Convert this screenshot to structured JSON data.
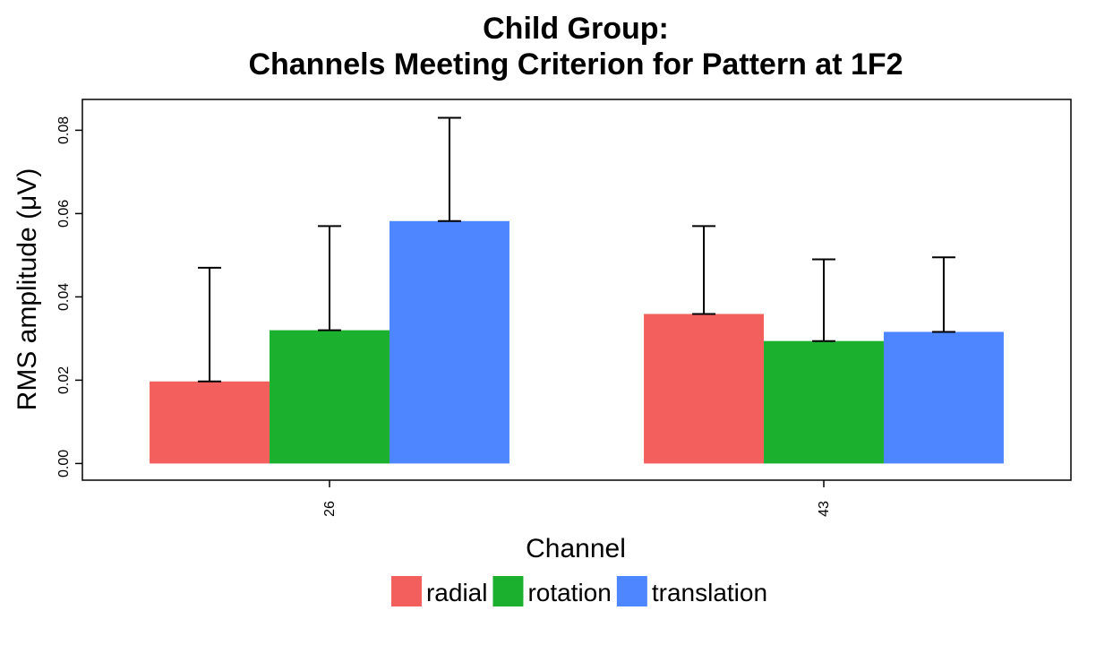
{
  "chart_data": {
    "type": "bar",
    "title": "Child Group:",
    "subtitle": "Channels Meeting Criterion for Pattern at 1F2",
    "xlabel": "Channel",
    "ylabel": "RMS amplitude (μV)",
    "categories": [
      "26",
      "43"
    ],
    "series": [
      {
        "name": "radial",
        "color": "#F25F5C",
        "values": [
          0.0197,
          0.0359
        ],
        "error_upper": [
          0.047,
          0.057
        ]
      },
      {
        "name": "rotation",
        "color": "#1BB02E",
        "values": [
          0.032,
          0.0294
        ],
        "error_upper": [
          0.057,
          0.049
        ]
      },
      {
        "name": "translation",
        "color": "#4E86FF",
        "values": [
          0.0582,
          0.0316
        ],
        "error_upper": [
          0.083,
          0.0495
        ]
      }
    ],
    "ylim": [
      -0.004,
      0.0874
    ],
    "yticks": [
      "0.00",
      "0.02",
      "0.04",
      "0.06",
      "0.08"
    ],
    "grid": false,
    "legend_position": "bottom"
  }
}
